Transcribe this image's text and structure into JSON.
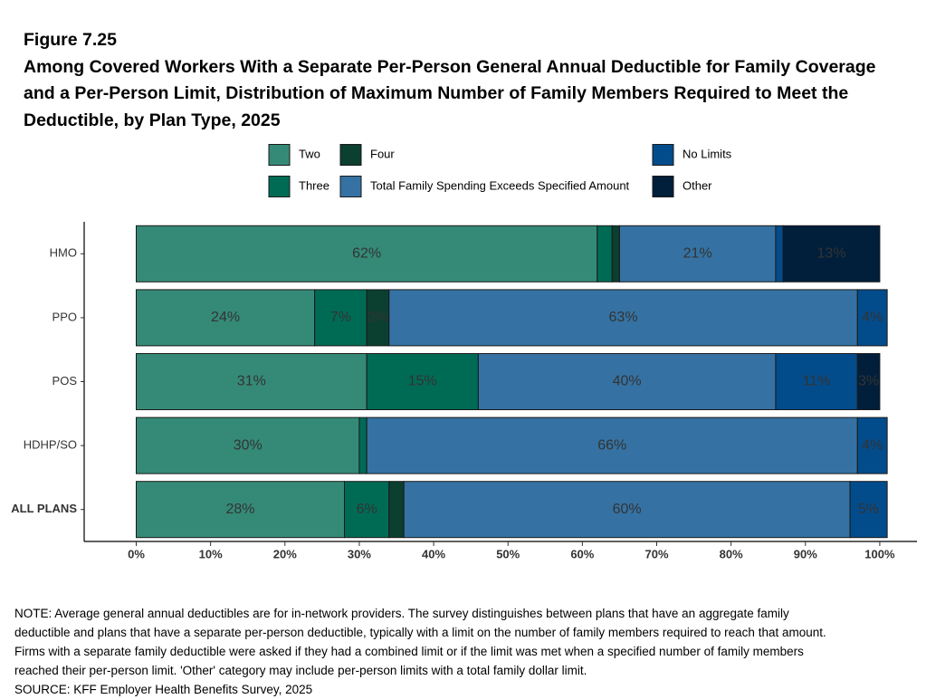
{
  "chart_data": {
    "type": "stacked-barh",
    "figure_label": "Figure 7.25",
    "title": "Among Covered Workers With a Separate Per-Person General Annual Deductible for Family Coverage and a Per-Person Limit, Distribution of Maximum Number of Family Members Required to Meet the Deductible, by Plan Type, 2025",
    "categories": [
      "HMO",
      "PPO",
      "POS",
      "HDHP/SO",
      "ALL PLANS"
    ],
    "series": [
      {
        "name": "Two",
        "color": "#358a77",
        "values": [
          62,
          24,
          31,
          30,
          28
        ],
        "value_labels": [
          "62%",
          "24%",
          "31%",
          "30%",
          "28%"
        ]
      },
      {
        "name": "Three",
        "color": "#006b55",
        "values": [
          2,
          7,
          15,
          1,
          6
        ],
        "value_labels": [
          null,
          "7%",
          "15%",
          null,
          "6%"
        ]
      },
      {
        "name": "Four",
        "color": "#0b3f30",
        "values": [
          1,
          3,
          0,
          0,
          2
        ],
        "value_labels": [
          null,
          "3%",
          null,
          null,
          null
        ]
      },
      {
        "name": "Total Family Spending Exceeds Specified Amount",
        "color": "#3572a3",
        "values": [
          21,
          63,
          40,
          66,
          60
        ],
        "value_labels": [
          "21%",
          "63%",
          "40%",
          "66%",
          "60%"
        ]
      },
      {
        "name": "No Limits",
        "color": "#034c8c",
        "values": [
          1,
          4,
          11,
          4,
          5
        ],
        "value_labels": [
          null,
          "4%",
          "11%",
          "4%",
          "5%"
        ]
      },
      {
        "name": "Other",
        "color": "#011f3b",
        "values": [
          13,
          0,
          3,
          0,
          0
        ],
        "value_labels": [
          "13%",
          null,
          "3%",
          null,
          null
        ]
      }
    ],
    "xlim": [
      -7,
      105
    ],
    "xticks": [
      {
        "value": 0,
        "label": "0%"
      },
      {
        "value": 10,
        "label": "10%"
      },
      {
        "value": 20,
        "label": "20%"
      },
      {
        "value": 30,
        "label": "30%"
      },
      {
        "value": 40,
        "label": "40%"
      },
      {
        "value": 50,
        "label": "50%"
      },
      {
        "value": 60,
        "label": "60%"
      },
      {
        "value": 70,
        "label": "70%"
      },
      {
        "value": 80,
        "label": "80%"
      },
      {
        "value": 90,
        "label": "90%"
      },
      {
        "value": 100,
        "label": "100%"
      }
    ],
    "legend": "top",
    "note": "NOTE: Average general annual deductibles are for in-network providers. The survey distinguishes between plans that have an aggregate family deductible and plans that have a separate per-person deductible, typically with a limit on the number of family members required to reach that amount. Firms with a separate family deductible were asked if they had a combined limit or if the limit was met when a specified number of family members reached their per-person limit. 'Other' category may include per-person limits with a total family dollar limit.",
    "source": "SOURCE: KFF Employer Health Benefits Survey, 2025"
  }
}
